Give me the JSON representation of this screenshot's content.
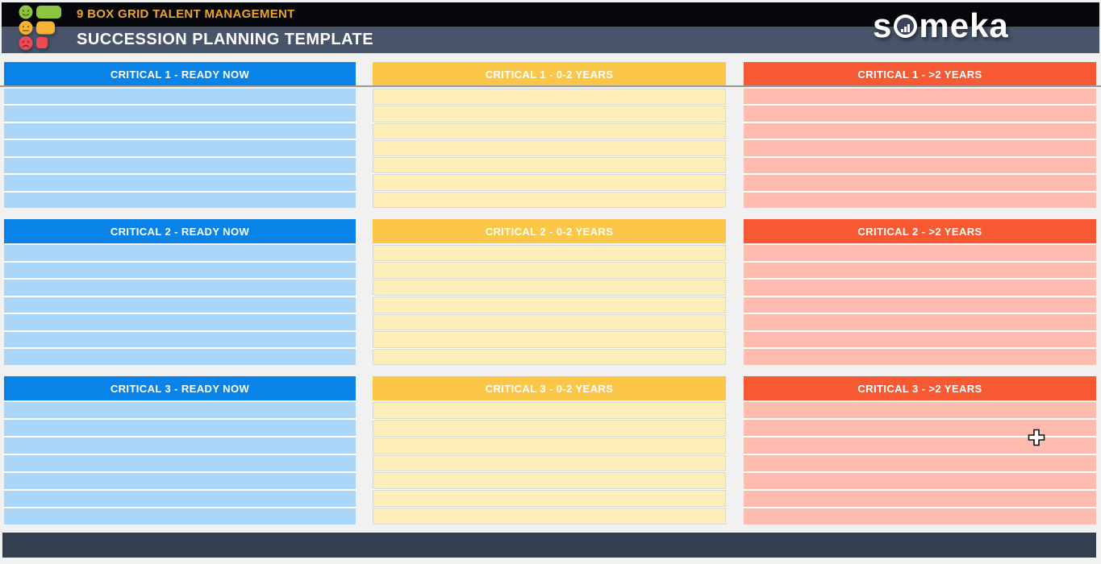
{
  "titlebar": {
    "product_line": "9 BOX GRID TALENT MANAGEMENT",
    "template_title": "SUCCESSION PLANNING TEMPLATE",
    "brand_prefix": "s",
    "brand_suffix": "meka"
  },
  "palette": {
    "topbar_black": "#05070a",
    "topbar_slate": "#475469",
    "accent_gold": "#eda42c",
    "blue_header": "#0a83e8",
    "blue_row": "#aad6fa",
    "yellow_header": "#fcc648",
    "yellow_row": "#fdedb9",
    "red_header": "#f75a33",
    "red_row": "#fdbcae",
    "footer_slate": "#333e4f",
    "page_background": "#f1f1f2",
    "pane_divider": "#9a9a9a"
  },
  "grid": {
    "rows_per_section": 7,
    "columns": [
      {
        "name": "ready-now",
        "sections": [
          "CRITICAL 1 - READY NOW",
          "CRITICAL 2 - READY NOW",
          "CRITICAL 3 - READY NOW"
        ]
      },
      {
        "name": "0-2-years",
        "sections": [
          "CRITICAL 1 - 0-2 YEARS",
          "CRITICAL 2 - 0-2 YEARS",
          "CRITICAL 3 - 0-2 YEARS"
        ]
      },
      {
        "name": "over-2-years",
        "sections": [
          "CRITICAL 1 - >2 YEARS",
          "CRITICAL 2 - >2 YEARS",
          "CRITICAL 3 - >2 YEARS"
        ]
      }
    ]
  },
  "icons": {
    "logo_mark": "traffic-light-smiley-bars-logo",
    "brand_o": "bar-chart-in-circle-icon",
    "cursor": "excel-plus-cursor"
  }
}
